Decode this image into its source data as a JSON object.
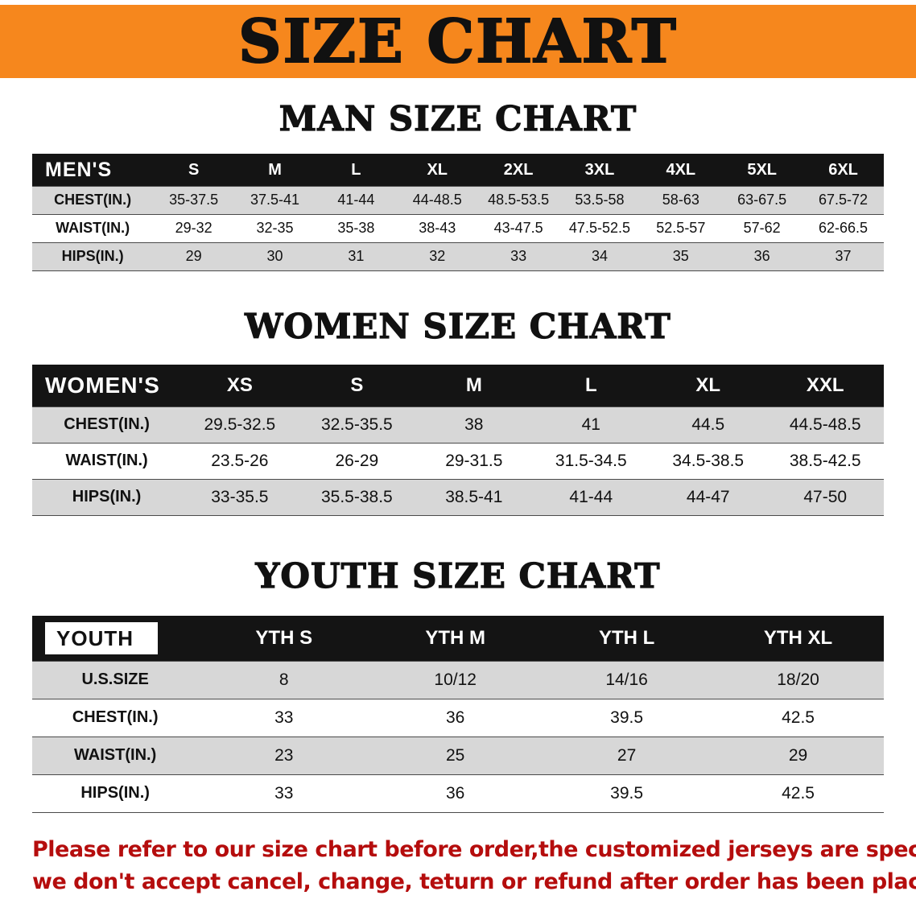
{
  "colors": {
    "banner_bg": "#f6871d",
    "header_bg": "#141414",
    "stripe_bg": "#d7d7d7",
    "note_red": "#b50d0d",
    "text": "#111111"
  },
  "banner": {
    "title": "SIZE CHART"
  },
  "sections": [
    {
      "heading": "MAN SIZE CHART",
      "table": {
        "label": "MEN'S",
        "label_col_width": "14.2%",
        "columns": [
          "S",
          "M",
          "L",
          "XL",
          "2XL",
          "3XL",
          "4XL",
          "5XL",
          "6XL"
        ],
        "rows": [
          {
            "label": "CHEST(IN.)",
            "values": [
              "35-37.5",
              "37.5-41",
              "41-44",
              "44-48.5",
              "48.5-53.5",
              "53.5-58",
              "58-63",
              "63-67.5",
              "67.5-72"
            ]
          },
          {
            "label": "WAIST(IN.)",
            "values": [
              "29-32",
              "32-35",
              "35-38",
              "38-43",
              "43-47.5",
              "47.5-52.5",
              "52.5-57",
              "57-62",
              "62-66.5"
            ]
          },
          {
            "label": "HIPS(IN.)",
            "values": [
              "29",
              "30",
              "31",
              "32",
              "33",
              "34",
              "35",
              "36",
              "37"
            ]
          }
        ]
      }
    },
    {
      "heading": "WOMEN SIZE CHART",
      "table": {
        "label": "WOMEN'S",
        "label_col_width": "17.5%",
        "columns": [
          "XS",
          "S",
          "M",
          "L",
          "XL",
          "XXL"
        ],
        "rows": [
          {
            "label": "CHEST(IN.)",
            "values": [
              "29.5-32.5",
              "32.5-35.5",
              "38",
              "41",
              "44.5",
              "44.5-48.5"
            ]
          },
          {
            "label": "WAIST(IN.)",
            "values": [
              "23.5-26",
              "26-29",
              "29-31.5",
              "31.5-34.5",
              "34.5-38.5",
              "38.5-42.5"
            ]
          },
          {
            "label": "HIPS(IN.)",
            "values": [
              "33-35.5",
              "35.5-38.5",
              "38.5-41",
              "41-44",
              "44-47",
              "47-50"
            ]
          }
        ]
      }
    },
    {
      "heading": "YOUTH SIZE CHART",
      "table": {
        "label": "YOUTH",
        "label_style": "inverted",
        "label_col_width": "19.5%",
        "columns": [
          "YTH S",
          "YTH M",
          "YTH L",
          "YTH XL"
        ],
        "rows": [
          {
            "label": "U.S.SIZE",
            "values": [
              "8",
              "10/12",
              "14/16",
              "18/20"
            ]
          },
          {
            "label": "CHEST(IN.)",
            "values": [
              "33",
              "36",
              "39.5",
              "42.5"
            ]
          },
          {
            "label": "WAIST(IN.)",
            "values": [
              "23",
              "25",
              "27",
              "29"
            ]
          },
          {
            "label": "HIPS(IN.)",
            "values": [
              "33",
              "36",
              "39.5",
              "42.5"
            ]
          }
        ]
      }
    }
  ],
  "footer_note": {
    "lines": [
      "Please refer to our size chart before order,the customized jerseys are special products,",
      "we don't accept cancel, change, teturn or refund after order has been placed!"
    ]
  }
}
